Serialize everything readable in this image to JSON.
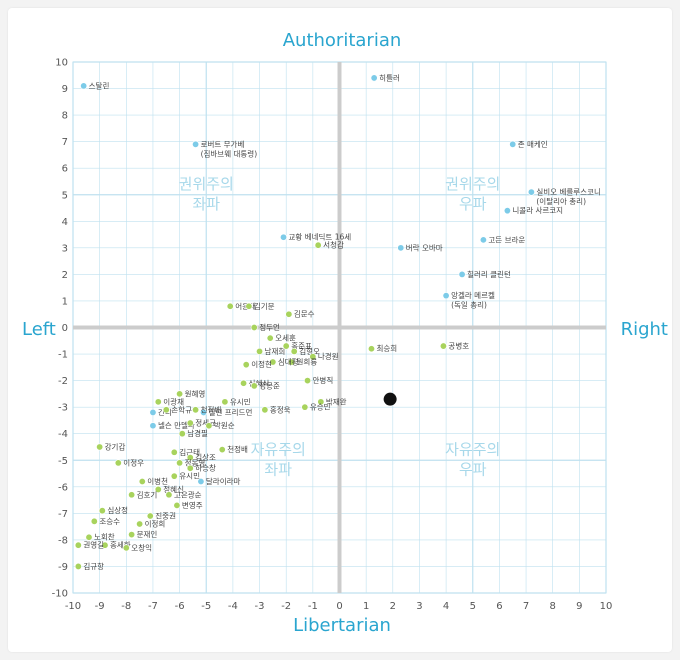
{
  "chart_data": {
    "type": "scatter",
    "axis_titles": {
      "top": "Authoritarian",
      "bottom": "Libertarian",
      "left": "Left",
      "right": "Right"
    },
    "xlim": [
      -10,
      10
    ],
    "ylim": [
      -10,
      10
    ],
    "x_ticks": [
      -10,
      -9,
      -8,
      -7,
      -6,
      -5,
      -4,
      -3,
      -2,
      -1,
      0,
      1,
      2,
      3,
      4,
      5,
      6,
      7,
      8,
      9,
      10
    ],
    "y_ticks": [
      10,
      9,
      8,
      7,
      6,
      5,
      4,
      3,
      2,
      1,
      0,
      -1,
      -2,
      -3,
      -4,
      -5,
      -6,
      -7,
      -8,
      -9,
      -10
    ],
    "grid": true,
    "quadrant_labels": [
      {
        "lines": [
          "권위주의",
          "좌파"
        ],
        "x": -5,
        "y": 5
      },
      {
        "lines": [
          "권위주의",
          "우파"
        ],
        "x": 5,
        "y": 5
      },
      {
        "lines": [
          "자유주의",
          "좌파"
        ],
        "x": -2.3,
        "y": -5
      },
      {
        "lines": [
          "자유주의",
          "우파"
        ],
        "x": 5,
        "y": -5
      }
    ],
    "colors": {
      "grid": "#bfe1ef",
      "major_grid": "#cfe8f2",
      "axis": "#cccccc",
      "world_leader": "#7ccbe8",
      "korean_politician": "#a8d35d",
      "user": "#111111"
    },
    "series": [
      {
        "kind": "world_leader",
        "points": [
          {
            "label": "스탈린",
            "x": -9.6,
            "y": 9.1
          },
          {
            "label": "히틀러",
            "x": 1.3,
            "y": 9.4
          },
          {
            "label": "로버트 무가베",
            "label2": "(짐바브웨 대통령)",
            "x": -5.4,
            "y": 6.9
          },
          {
            "label": "존 매케인",
            "x": 6.5,
            "y": 6.9
          },
          {
            "label": "실비오 베를루스코니",
            "label2": "(이탈리아 총리)",
            "x": 7.2,
            "y": 5.1
          },
          {
            "label": "니콜라 사르코지",
            "x": 6.3,
            "y": 4.4
          },
          {
            "label": "교황 베네딕트 16세",
            "x": -2.1,
            "y": 3.4
          },
          {
            "label": "버락 오바마",
            "x": 2.3,
            "y": 3.0
          },
          {
            "label": "고든 브라운",
            "x": 5.4,
            "y": 3.3
          },
          {
            "label": "힐러리 클린턴",
            "x": 4.6,
            "y": 2.0
          },
          {
            "label": "앙겔라 메르켈",
            "label2": "(독일 총리)",
            "x": 4.0,
            "y": 1.2
          },
          {
            "label": "간디",
            "x": -7.0,
            "y": -3.2
          },
          {
            "label": "넬슨 만델라",
            "x": -7.0,
            "y": -3.7
          },
          {
            "label": "달라이라마",
            "x": -5.2,
            "y": -5.8
          },
          {
            "label": "밀턴 프리드먼",
            "x": -5.1,
            "y": -3.2
          }
        ]
      },
      {
        "kind": "korean_politician",
        "points": [
          {
            "label": "서청갑",
            "x": -0.8,
            "y": 3.1
          },
          {
            "label": "어윤대",
            "x": -4.1,
            "y": 0.8
          },
          {
            "label": "김기문",
            "x": -3.4,
            "y": 0.8
          },
          {
            "label": "김문수",
            "x": -1.9,
            "y": 0.5
          },
          {
            "label": "정두언",
            "x": -3.2,
            "y": 0.0
          },
          {
            "label": "오세훈",
            "x": -2.6,
            "y": -0.4
          },
          {
            "label": "남재희",
            "x": -3.0,
            "y": -0.9
          },
          {
            "label": "홍준표",
            "x": -2.0,
            "y": -0.7
          },
          {
            "label": "김형오",
            "x": -1.7,
            "y": -0.9
          },
          {
            "label": "나경원",
            "x": -1.0,
            "y": -1.1
          },
          {
            "label": "원희룡",
            "x": -1.8,
            "y": -1.3
          },
          {
            "label": "심대평",
            "x": -2.5,
            "y": -1.3
          },
          {
            "label": "이정현",
            "x": -3.5,
            "y": -1.4
          },
          {
            "label": "최승희",
            "x": 1.2,
            "y": -0.8
          },
          {
            "label": "공병호",
            "x": 3.9,
            "y": -0.7
          },
          {
            "label": "신혜식",
            "x": -3.6,
            "y": -2.1
          },
          {
            "label": "정몽준",
            "x": -3.2,
            "y": -2.2
          },
          {
            "label": "안병직",
            "x": -1.2,
            "y": -2.0
          },
          {
            "label": "박재완",
            "x": -0.7,
            "y": -2.8
          },
          {
            "label": "원혜영",
            "x": -6.0,
            "y": -2.5
          },
          {
            "label": "이광재",
            "x": -6.8,
            "y": -2.8
          },
          {
            "label": "유시민",
            "x": -4.3,
            "y": -2.8
          },
          {
            "label": "홍정욱",
            "x": -2.8,
            "y": -3.1
          },
          {
            "label": "유승민",
            "x": -1.3,
            "y": -3.0
          },
          {
            "label": "손학규",
            "x": -6.5,
            "y": -3.1
          },
          {
            "label": "천정배",
            "x": -5.4,
            "y": -3.1
          },
          {
            "label": "정세균",
            "x": -5.6,
            "y": -3.6
          },
          {
            "label": "박원순",
            "x": -4.9,
            "y": -3.7
          },
          {
            "label": "남경필",
            "x": -5.9,
            "y": -4.0
          },
          {
            "label": "강기갑",
            "x": -9.0,
            "y": -4.5
          },
          {
            "label": "김근태",
            "x": -6.2,
            "y": -4.7
          },
          {
            "label": "김상조",
            "x": -5.6,
            "y": -4.9
          },
          {
            "label": "천정배",
            "x": -4.4,
            "y": -4.6
          },
          {
            "label": "이정우",
            "x": -8.3,
            "y": -5.1
          },
          {
            "label": "정동영",
            "x": -6.0,
            "y": -5.1
          },
          {
            "label": "하승창",
            "x": -5.6,
            "y": -5.3
          },
          {
            "label": "유시민",
            "x": -6.2,
            "y": -5.6
          },
          {
            "label": "이병천",
            "x": -7.4,
            "y": -5.8
          },
          {
            "label": "정혜신",
            "x": -6.8,
            "y": -6.1
          },
          {
            "label": "김호기",
            "x": -7.8,
            "y": -6.3
          },
          {
            "label": "고은광순",
            "x": -6.4,
            "y": -6.3
          },
          {
            "label": "변영주",
            "x": -6.1,
            "y": -6.7
          },
          {
            "label": "심상정",
            "x": -8.9,
            "y": -6.9
          },
          {
            "label": "진중권",
            "x": -7.1,
            "y": -7.1
          },
          {
            "label": "조승수",
            "x": -9.2,
            "y": -7.3
          },
          {
            "label": "이정희",
            "x": -7.5,
            "y": -7.4
          },
          {
            "label": "노회찬",
            "x": -9.4,
            "y": -7.9
          },
          {
            "label": "문재인",
            "x": -7.8,
            "y": -7.8
          },
          {
            "label": "홍세화",
            "x": -8.8,
            "y": -8.2
          },
          {
            "label": "오창익",
            "x": -8.0,
            "y": -8.3
          },
          {
            "label": "권영길",
            "x": -9.8,
            "y": -8.2
          },
          {
            "label": "김규항",
            "x": -9.8,
            "y": -9.0
          }
        ]
      },
      {
        "kind": "user",
        "points": [
          {
            "label": "",
            "x": 1.9,
            "y": -2.7
          }
        ]
      }
    ]
  }
}
